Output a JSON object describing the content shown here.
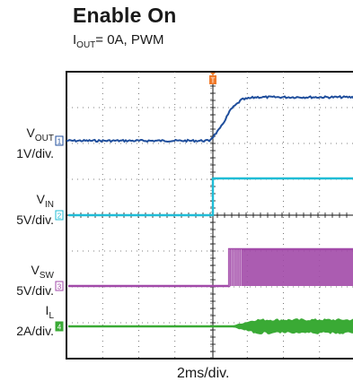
{
  "header": {
    "title": "Enable On",
    "subtitle_main": "I",
    "subtitle_sub": "OUT",
    "subtitle_rest": "= 0A, PWM"
  },
  "chart_data": {
    "type": "line",
    "title": "Enable On",
    "subtitle": "IOUT= 0A, PWM",
    "xlabel": "2ms/div.",
    "x_unit": "ms",
    "x_range": [
      -8,
      8
    ],
    "grid": true,
    "trigger_marker": "T",
    "series": [
      {
        "name": "VOUT",
        "scale_label": "1V/div.",
        "marker": "1",
        "color": "#1f4e9c",
        "points": [
          [
            -8,
            0
          ],
          [
            -0.2,
            0
          ],
          [
            0.4,
            0.5
          ],
          [
            1.0,
            1.3
          ],
          [
            1.6,
            1.7
          ],
          [
            2.4,
            1.8
          ],
          [
            8,
            1.8
          ]
        ]
      },
      {
        "name": "VIN",
        "scale_label": "5V/div.",
        "marker": "2",
        "color": "#1fbcd6",
        "points": [
          [
            -8,
            0
          ],
          [
            0,
            0
          ],
          [
            0,
            3.6
          ],
          [
            8,
            3.6
          ]
        ]
      },
      {
        "name": "VSW",
        "scale_label": "5V/div.",
        "marker": "3",
        "color": "#a24aa9",
        "points": [
          [
            -8,
            0
          ],
          [
            0.9,
            0
          ],
          [
            0.9,
            3.6
          ],
          [
            8,
            3.6
          ]
        ]
      },
      {
        "name": "IL",
        "scale_label": "2A/div.",
        "marker": "4",
        "color": "#3aaa35",
        "points": [
          [
            -8,
            0
          ],
          [
            0.9,
            0
          ],
          [
            8,
            0
          ]
        ]
      }
    ]
  },
  "labels": {
    "vout_main": "V",
    "vout_sub": "OUT",
    "vout_scale": "1V/div.",
    "vin_main": "V",
    "vin_sub": "IN",
    "vin_scale": "5V/div.",
    "vsw_main": "V",
    "vsw_sub": "SW",
    "vsw_scale": "5V/div.",
    "il_main": "I",
    "il_sub": "L",
    "il_scale": "2A/div.",
    "marker_1": "1",
    "marker_2": "2",
    "marker_3": "3",
    "marker_4": "4",
    "trigger": "T"
  }
}
